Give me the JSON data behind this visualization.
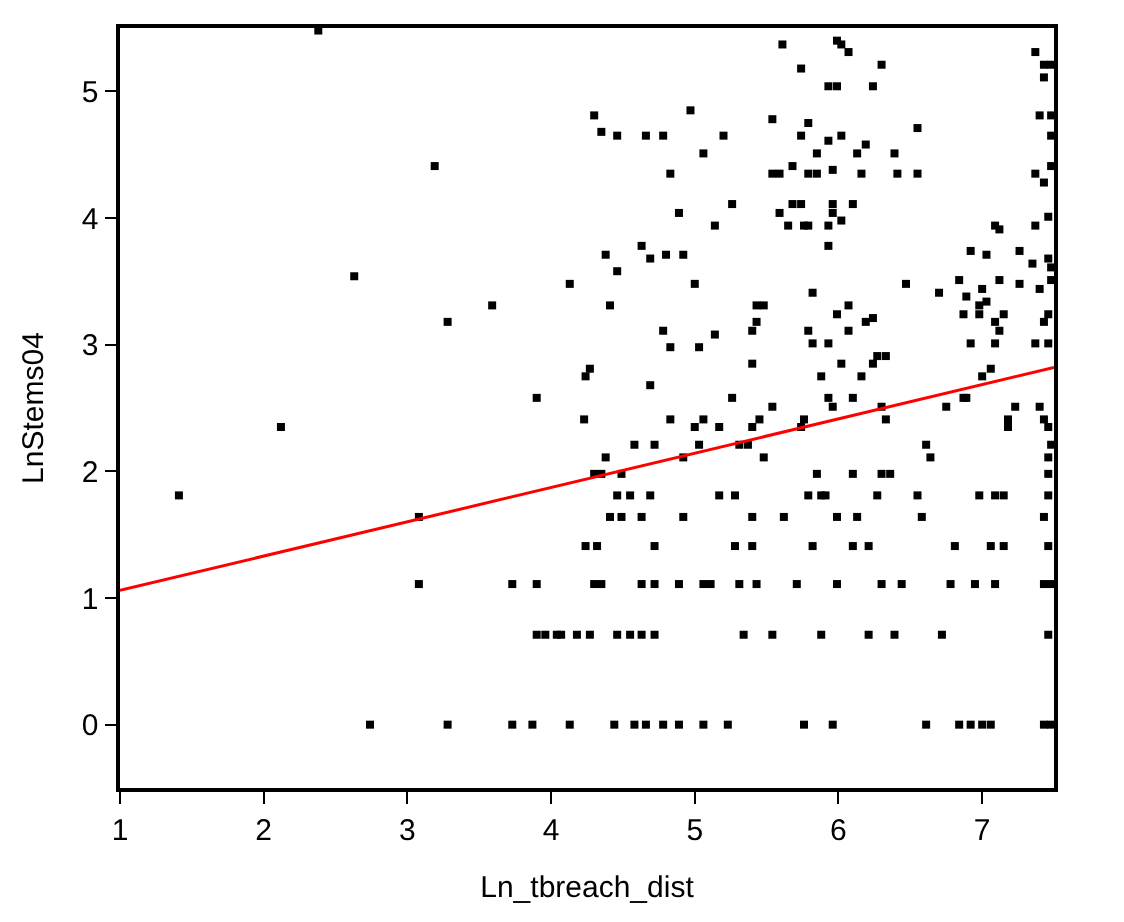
{
  "chart_data": {
    "type": "scatter",
    "xlabel": "Ln_tbreach_dist",
    "ylabel": "LnStems04",
    "xlim": [
      1,
      7.5
    ],
    "ylim": [
      -0.5,
      5.5
    ],
    "xticks": [
      1,
      2,
      3,
      4,
      5,
      6,
      7
    ],
    "yticks": [
      0,
      1,
      2,
      3,
      4,
      5
    ],
    "series": [
      {
        "marker": "square",
        "color": "#000000",
        "x": [
          2.38,
          3.19,
          2.63,
          4.13,
          3.59,
          3.28,
          3.9,
          2.12,
          1.41,
          3.08,
          3.08,
          3.73,
          3.9,
          3.9,
          3.96,
          4.04,
          2.74,
          3.28,
          3.73,
          3.87,
          4.13,
          5.61,
          5.74,
          4.3,
          4.97,
          5.54,
          5.79,
          4.35,
          4.46,
          4.66,
          4.78,
          5.2,
          5.74,
          5.06,
          5.85,
          4.83,
          5.54,
          5.59,
          5.68,
          5.79,
          5.85,
          5.26,
          5.68,
          5.74,
          4.89,
          5.59,
          5.14,
          5.65,
          5.76,
          5.79,
          4.63,
          4.38,
          4.69,
          4.8,
          4.92,
          4.46,
          5.0,
          4.41,
          5.43,
          5.48,
          5.82,
          5.43,
          5.4,
          4.78,
          5.79,
          5.14,
          4.83,
          5.03,
          5.82,
          4.27,
          4.24,
          5.4,
          4.69,
          5.26,
          5.88,
          4.23,
          4.83,
          5.06,
          5.0,
          5.17,
          5.54,
          5.45,
          5.4,
          5.76,
          5.74,
          4.58,
          4.72,
          5.03,
          5.31,
          5.37,
          4.38,
          4.92,
          5.48,
          4.3,
          4.35,
          4.49,
          4.46,
          4.55,
          4.69,
          5.17,
          5.28,
          5.79,
          5.88,
          4.41,
          4.49,
          4.63,
          4.92,
          5.4,
          5.62,
          4.24,
          4.32,
          4.72,
          5.28,
          5.4,
          5.82,
          4.3,
          4.35,
          4.63,
          4.72,
          4.89,
          5.06,
          5.11,
          5.31,
          5.43,
          5.71,
          4.07,
          4.18,
          4.27,
          4.46,
          4.55,
          4.63,
          4.72,
          5.34,
          5.54,
          5.88,
          4.44,
          4.58,
          4.66,
          4.78,
          4.89,
          5.06,
          5.23,
          5.76,
          5.99,
          6.02,
          6.07,
          6.3,
          5.93,
          5.99,
          6.24,
          7.37,
          7.43,
          7.48,
          7.43,
          6.55,
          7.4,
          7.48,
          7.48,
          5.93,
          6.02,
          6.19,
          6.13,
          6.39,
          5.96,
          6.16,
          6.41,
          6.55,
          7.37,
          7.43,
          7.48,
          5.96,
          6.1,
          5.96,
          6.02,
          5.93,
          5.93,
          7.09,
          7.12,
          7.37,
          7.46,
          6.92,
          7.03,
          7.26,
          7.35,
          7.46,
          7.48,
          6.47,
          6.84,
          7.0,
          7.12,
          7.26,
          7.4,
          7.48,
          6.7,
          6.89,
          6.98,
          7.03,
          6.87,
          6.98,
          7.15,
          7.46,
          7.43,
          5.99,
          6.07,
          6.24,
          6.19,
          6.07,
          7.09,
          7.12,
          5.93,
          6.92,
          7.09,
          7.37,
          7.46,
          6.02,
          6.24,
          6.27,
          6.33,
          6.16,
          7.0,
          7.06,
          5.93,
          6.1,
          5.96,
          6.3,
          6.33,
          6.75,
          6.87,
          6.89,
          7.23,
          7.4,
          7.18,
          7.18,
          7.43,
          7.46,
          6.61,
          6.64,
          7.48,
          7.46,
          5.85,
          6.1,
          6.3,
          6.36,
          7.46,
          5.91,
          6.27,
          6.55,
          6.98,
          7.09,
          7.15,
          7.46,
          5.99,
          6.13,
          6.58,
          7.43,
          6.1,
          6.21,
          6.81,
          7.06,
          7.15,
          7.46,
          5.99,
          6.3,
          6.44,
          6.78,
          6.95,
          7.09,
          7.43,
          7.48,
          6.21,
          6.39,
          6.72,
          7.46,
          5.96,
          6.61,
          6.84,
          6.92,
          7.0,
          7.06,
          7.43,
          7.48
        ],
        "values": [
          5.48,
          4.41,
          3.54,
          3.48,
          3.31,
          3.18,
          2.58,
          2.35,
          1.81,
          1.64,
          1.11,
          1.11,
          1.11,
          0.71,
          0.71,
          0.71,
          0,
          0,
          0,
          0,
          0,
          5.37,
          5.18,
          4.81,
          4.85,
          4.78,
          4.75,
          4.68,
          4.65,
          4.65,
          4.65,
          4.65,
          4.65,
          4.51,
          4.51,
          4.35,
          4.35,
          4.35,
          4.41,
          4.35,
          4.35,
          4.11,
          4.11,
          4.11,
          4.04,
          4.04,
          3.94,
          3.94,
          3.94,
          3.94,
          3.78,
          3.71,
          3.68,
          3.71,
          3.71,
          3.58,
          3.48,
          3.31,
          3.31,
          3.31,
          3.41,
          3.18,
          3.11,
          3.11,
          3.11,
          3.08,
          2.98,
          2.98,
          3.01,
          2.81,
          2.75,
          2.85,
          2.68,
          2.58,
          2.75,
          2.41,
          2.41,
          2.41,
          2.35,
          2.35,
          2.51,
          2.41,
          2.35,
          2.41,
          2.35,
          2.21,
          2.21,
          2.21,
          2.21,
          2.21,
          2.11,
          2.11,
          2.11,
          1.98,
          1.98,
          1.98,
          1.81,
          1.81,
          1.81,
          1.81,
          1.81,
          1.81,
          1.81,
          1.64,
          1.64,
          1.64,
          1.64,
          1.64,
          1.64,
          1.41,
          1.41,
          1.41,
          1.41,
          1.41,
          1.41,
          1.11,
          1.11,
          1.11,
          1.11,
          1.11,
          1.11,
          1.11,
          1.11,
          1.11,
          1.11,
          0.71,
          0.71,
          0.71,
          0.71,
          0.71,
          0.71,
          0.71,
          0.71,
          0.71,
          0.71,
          0,
          0,
          0,
          0,
          0,
          0,
          0,
          0,
          5.4,
          5.37,
          5.31,
          5.21,
          5.04,
          5.04,
          5.04,
          5.31,
          5.21,
          5.21,
          5.11,
          4.71,
          4.81,
          4.81,
          4.65,
          4.61,
          4.65,
          4.58,
          4.51,
          4.51,
          4.38,
          4.35,
          4.35,
          4.35,
          4.35,
          4.28,
          4.41,
          4.11,
          4.11,
          4.04,
          3.98,
          3.94,
          3.78,
          3.94,
          3.91,
          3.94,
          4.01,
          3.74,
          3.71,
          3.74,
          3.64,
          3.68,
          3.61,
          3.48,
          3.51,
          3.44,
          3.51,
          3.48,
          3.44,
          3.51,
          3.41,
          3.38,
          3.31,
          3.34,
          3.24,
          3.24,
          3.24,
          3.24,
          3.18,
          3.24,
          3.31,
          3.21,
          3.18,
          3.11,
          3.18,
          3.11,
          3.01,
          3.01,
          3.01,
          3.01,
          3.01,
          2.85,
          2.85,
          2.91,
          2.91,
          2.75,
          2.75,
          2.81,
          2.58,
          2.58,
          2.51,
          2.51,
          2.41,
          2.51,
          2.58,
          2.58,
          2.51,
          2.51,
          2.41,
          2.35,
          2.41,
          2.35,
          2.21,
          2.11,
          2.21,
          2.11,
          1.98,
          1.98,
          1.98,
          1.98,
          1.98,
          1.81,
          1.81,
          1.81,
          1.81,
          1.81,
          1.81,
          1.81,
          1.64,
          1.64,
          1.64,
          1.64,
          1.41,
          1.41,
          1.41,
          1.41,
          1.41,
          1.41,
          1.11,
          1.11,
          1.11,
          1.11,
          1.11,
          1.11,
          1.11,
          1.11,
          0.71,
          0.71,
          0.71,
          0.71,
          0,
          0,
          0,
          0,
          0,
          0,
          0,
          0
        ]
      },
      {
        "type": "line",
        "color": "#ff0000",
        "x": [
          1,
          7.5
        ],
        "values": [
          1.06,
          2.82
        ]
      }
    ]
  }
}
